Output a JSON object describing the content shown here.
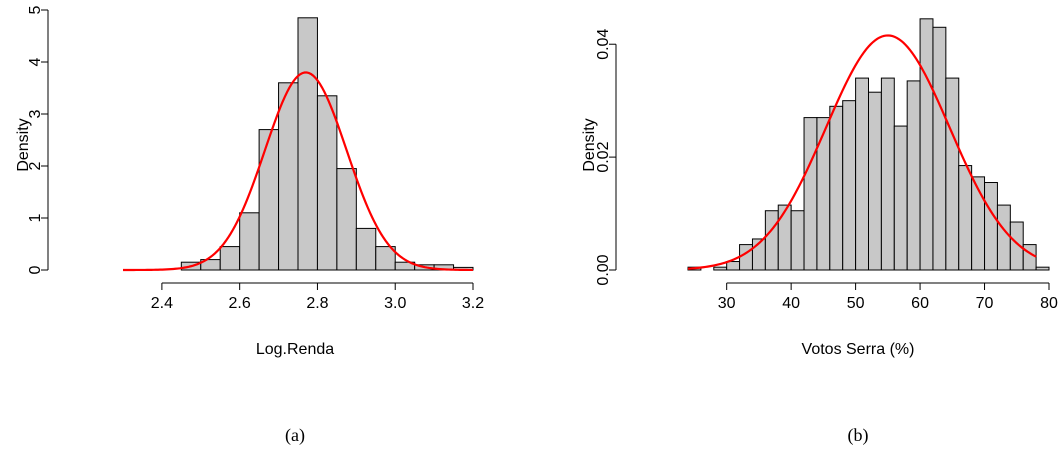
{
  "chart_data": [
    {
      "type": "bar",
      "panel_label": "(a)",
      "xlabel": "Log.Renda",
      "ylabel": "Density",
      "xlim": [
        2.3,
        3.2
      ],
      "ylim": [
        0,
        5
      ],
      "x_ticks": [
        "2.4",
        "2.6",
        "2.8",
        "3.0",
        "3.2"
      ],
      "y_ticks": [
        "0",
        "1",
        "2",
        "3",
        "4",
        "5"
      ],
      "bins": [
        {
          "start": 2.45,
          "end": 2.5,
          "density": 0.15
        },
        {
          "start": 2.5,
          "end": 2.55,
          "density": 0.2
        },
        {
          "start": 2.55,
          "end": 2.6,
          "density": 0.45
        },
        {
          "start": 2.6,
          "end": 2.65,
          "density": 1.1
        },
        {
          "start": 2.65,
          "end": 2.7,
          "density": 2.7
        },
        {
          "start": 2.7,
          "end": 2.75,
          "density": 3.6
        },
        {
          "start": 2.75,
          "end": 2.8,
          "density": 4.85
        },
        {
          "start": 2.8,
          "end": 2.85,
          "density": 3.35
        },
        {
          "start": 2.85,
          "end": 2.9,
          "density": 1.95
        },
        {
          "start": 2.9,
          "end": 2.95,
          "density": 0.8
        },
        {
          "start": 2.95,
          "end": 3.0,
          "density": 0.45
        },
        {
          "start": 3.0,
          "end": 3.05,
          "density": 0.15
        },
        {
          "start": 3.05,
          "end": 3.1,
          "density": 0.1
        },
        {
          "start": 3.1,
          "end": 3.15,
          "density": 0.1
        },
        {
          "start": 3.15,
          "end": 3.2,
          "density": 0.05
        }
      ],
      "curve": {
        "kind": "normal",
        "mean": 2.77,
        "sd": 0.105,
        "x_from": 2.3,
        "x_to": 3.2,
        "color": "#ff0000"
      },
      "bar_color": "#c8c8c8"
    },
    {
      "type": "bar",
      "panel_label": "(b)",
      "xlabel": "Votos Serra (%)",
      "ylabel": "Density",
      "xlim": [
        24,
        80
      ],
      "ylim": [
        0,
        0.045
      ],
      "x_ticks": [
        "30",
        "40",
        "50",
        "60",
        "70",
        "80"
      ],
      "y_ticks": [
        "0.00",
        "0.02",
        "0.04"
      ],
      "bins": [
        {
          "start": 24,
          "end": 26,
          "density": 0.0005
        },
        {
          "start": 28,
          "end": 30,
          "density": 0.0005
        },
        {
          "start": 30,
          "end": 32,
          "density": 0.0015
        },
        {
          "start": 32,
          "end": 34,
          "density": 0.0045
        },
        {
          "start": 34,
          "end": 36,
          "density": 0.0055
        },
        {
          "start": 36,
          "end": 38,
          "density": 0.0105
        },
        {
          "start": 38,
          "end": 40,
          "density": 0.0115
        },
        {
          "start": 40,
          "end": 42,
          "density": 0.0105
        },
        {
          "start": 42,
          "end": 44,
          "density": 0.027
        },
        {
          "start": 44,
          "end": 46,
          "density": 0.027
        },
        {
          "start": 46,
          "end": 48,
          "density": 0.029
        },
        {
          "start": 48,
          "end": 50,
          "density": 0.03
        },
        {
          "start": 50,
          "end": 52,
          "density": 0.034
        },
        {
          "start": 52,
          "end": 54,
          "density": 0.0315
        },
        {
          "start": 54,
          "end": 56,
          "density": 0.034
        },
        {
          "start": 56,
          "end": 58,
          "density": 0.0255
        },
        {
          "start": 58,
          "end": 60,
          "density": 0.0335
        },
        {
          "start": 60,
          "end": 62,
          "density": 0.0445
        },
        {
          "start": 62,
          "end": 64,
          "density": 0.043
        },
        {
          "start": 64,
          "end": 66,
          "density": 0.034
        },
        {
          "start": 66,
          "end": 68,
          "density": 0.0185
        },
        {
          "start": 68,
          "end": 70,
          "density": 0.0165
        },
        {
          "start": 70,
          "end": 72,
          "density": 0.0155
        },
        {
          "start": 72,
          "end": 74,
          "density": 0.0115
        },
        {
          "start": 74,
          "end": 76,
          "density": 0.0085
        },
        {
          "start": 76,
          "end": 78,
          "density": 0.0045
        },
        {
          "start": 78,
          "end": 80,
          "density": 0.0005
        }
      ],
      "curve": {
        "kind": "normal",
        "mean": 55,
        "sd": 9.6,
        "x_from": 24,
        "x_to": 78,
        "color": "#ff0000"
      },
      "bar_color": "#c8c8c8"
    }
  ]
}
